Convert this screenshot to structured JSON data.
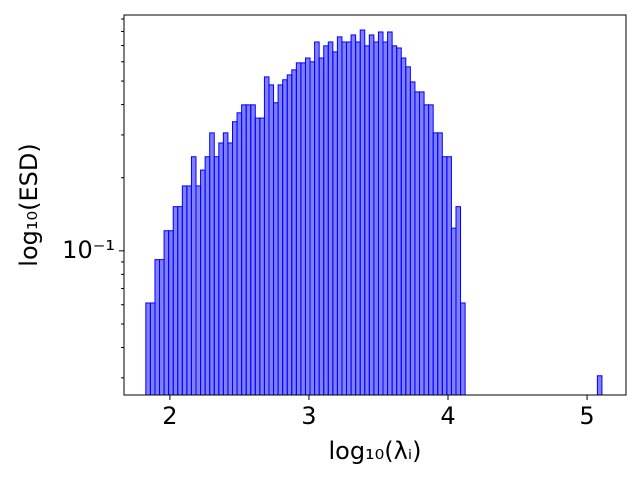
{
  "chart_data": {
    "type": "histogram",
    "xlabel": "log₁₀(λᵢ)",
    "ylabel": "log₁₀(ESD)",
    "bins": [
      1.827,
      1.8598,
      1.8926,
      1.9254,
      1.9582,
      1.991,
      2.0238,
      2.0566,
      2.0894,
      2.1222,
      2.155,
      2.1878,
      2.2206,
      2.2534,
      2.2862,
      2.319,
      2.3518,
      2.3846,
      2.4174,
      2.4502,
      2.483,
      2.5158,
      2.5486,
      2.5814,
      2.6142,
      2.647,
      2.6798,
      2.7126,
      2.7454,
      2.7782,
      2.811,
      2.8438,
      2.8766,
      2.9094,
      2.9422,
      2.975,
      3.0078,
      3.0406,
      3.0734,
      3.1062,
      3.139,
      3.1718,
      3.2046,
      3.2374,
      3.2702,
      3.303,
      3.3358,
      3.3686,
      3.4014,
      3.4342,
      3.467,
      3.4998,
      3.5326,
      3.5654,
      3.5982,
      3.631,
      3.6638,
      3.6966,
      3.7294,
      3.7622,
      3.795,
      3.8278,
      3.8606,
      3.8934,
      3.9262,
      3.959,
      3.9918,
      4.0246,
      4.0574,
      4.0902,
      4.123,
      4.1558,
      4.1886,
      4.2214,
      4.2542,
      4.287,
      4.3198,
      4.3526,
      4.3854,
      4.4182,
      4.451,
      4.4838,
      4.5166,
      4.5494,
      4.5822,
      4.615,
      4.6478,
      4.6806,
      4.7134,
      4.7462,
      4.779,
      4.8118,
      4.8446,
      4.8774,
      4.9102,
      4.943,
      4.9758,
      5.0086,
      5.0414,
      5.0742,
      5.107
    ],
    "values": [
      0.061,
      0.061,
      0.092,
      0.092,
      0.121,
      0.121,
      0.152,
      0.152,
      0.185,
      0.185,
      0.244,
      0.185,
      0.215,
      0.244,
      0.306,
      0.244,
      0.278,
      0.306,
      0.278,
      0.34,
      0.37,
      0.399,
      0.399,
      0.399,
      0.352,
      0.352,
      0.52,
      0.482,
      0.407,
      0.482,
      0.506,
      0.53,
      0.556,
      0.594,
      0.594,
      0.622,
      0.6,
      0.724,
      0.622,
      0.698,
      0.724,
      0.659,
      0.76,
      0.724,
      0.724,
      0.774,
      0.724,
      0.811,
      0.698,
      0.774,
      0.724,
      0.796,
      0.724,
      0.796,
      0.698,
      0.684,
      0.622,
      0.572,
      0.496,
      0.451,
      0.451,
      0.399,
      0.399,
      0.306,
      0.306,
      0.244,
      0.244,
      0.124,
      0.152,
      0.061,
      0,
      0,
      0,
      0,
      0,
      0,
      0,
      0,
      0,
      0,
      0,
      0,
      0,
      0,
      0,
      0,
      0,
      0,
      0,
      0,
      0,
      0,
      0,
      0,
      0,
      0,
      0,
      0,
      0,
      0.0306
    ],
    "color": "#0000ff",
    "alpha": 0.5,
    "xlim": [
      1.67,
      5.28
    ],
    "xticks": [
      2,
      3,
      4,
      5
    ],
    "ylim": [
      0.0255,
      0.935
    ],
    "ylog": true,
    "yticks": [
      {
        "value": 0.1,
        "label": "10⁻¹"
      }
    ],
    "yticks_minor": [
      0.03,
      0.04,
      0.05,
      0.06,
      0.07,
      0.08,
      0.09,
      0.2,
      0.3,
      0.4,
      0.5,
      0.6,
      0.7,
      0.8,
      0.9
    ]
  }
}
